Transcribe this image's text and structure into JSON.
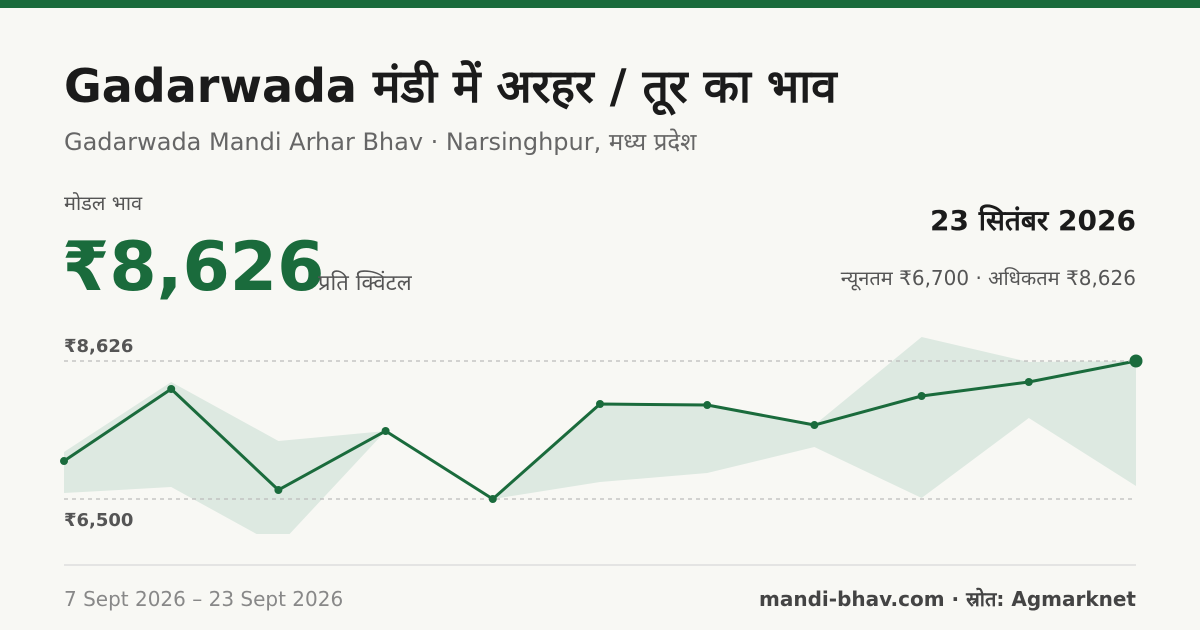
{
  "header": {
    "title": "Gadarwada मंडी में अरहर / तूर का भाव",
    "subtitle": "Gadarwada Mandi Arhar Bhav · Narsinghpur, मध्य प्रदेश"
  },
  "summary": {
    "label": "मोडल भाव",
    "modal_price": "₹8,626",
    "unit": "प्रति क्विंटल",
    "date": "23 सितंबर 2026",
    "range": "न्यूनतम ₹6,700 · अधिकतम ₹8,626"
  },
  "chart_data": {
    "type": "line",
    "categories": [
      null,
      null,
      null,
      null,
      null,
      null,
      null,
      null,
      null,
      null,
      null
    ],
    "values": [
      7085,
      8195,
      6639,
      7548,
      6500,
      7964,
      7948,
      7640,
      8087,
      8303,
      8626
    ],
    "max_values": [
      7224,
      8303,
      7394,
      7548,
      6500,
      7964,
      7948,
      7640,
      8996,
      8611,
      8626
    ],
    "min_values": [
      6592,
      6685,
      5776,
      7548,
      6500,
      6762,
      6901,
      7301,
      6515,
      7748,
      6700
    ],
    "color": "#1a6b3c",
    "band_color": "#dde9e1",
    "ylim": [
      5961,
      9104
    ],
    "yticks": [
      {
        "value": 8626,
        "label": "₹8,626"
      },
      {
        "value": 6500,
        "label": "₹6,500"
      }
    ],
    "grid": true
  },
  "footer": {
    "date_range": "7 Sept 2026 – 23 Sept 2026",
    "source": "mandi-bhav.com · स्रोत: Agmarknet"
  }
}
